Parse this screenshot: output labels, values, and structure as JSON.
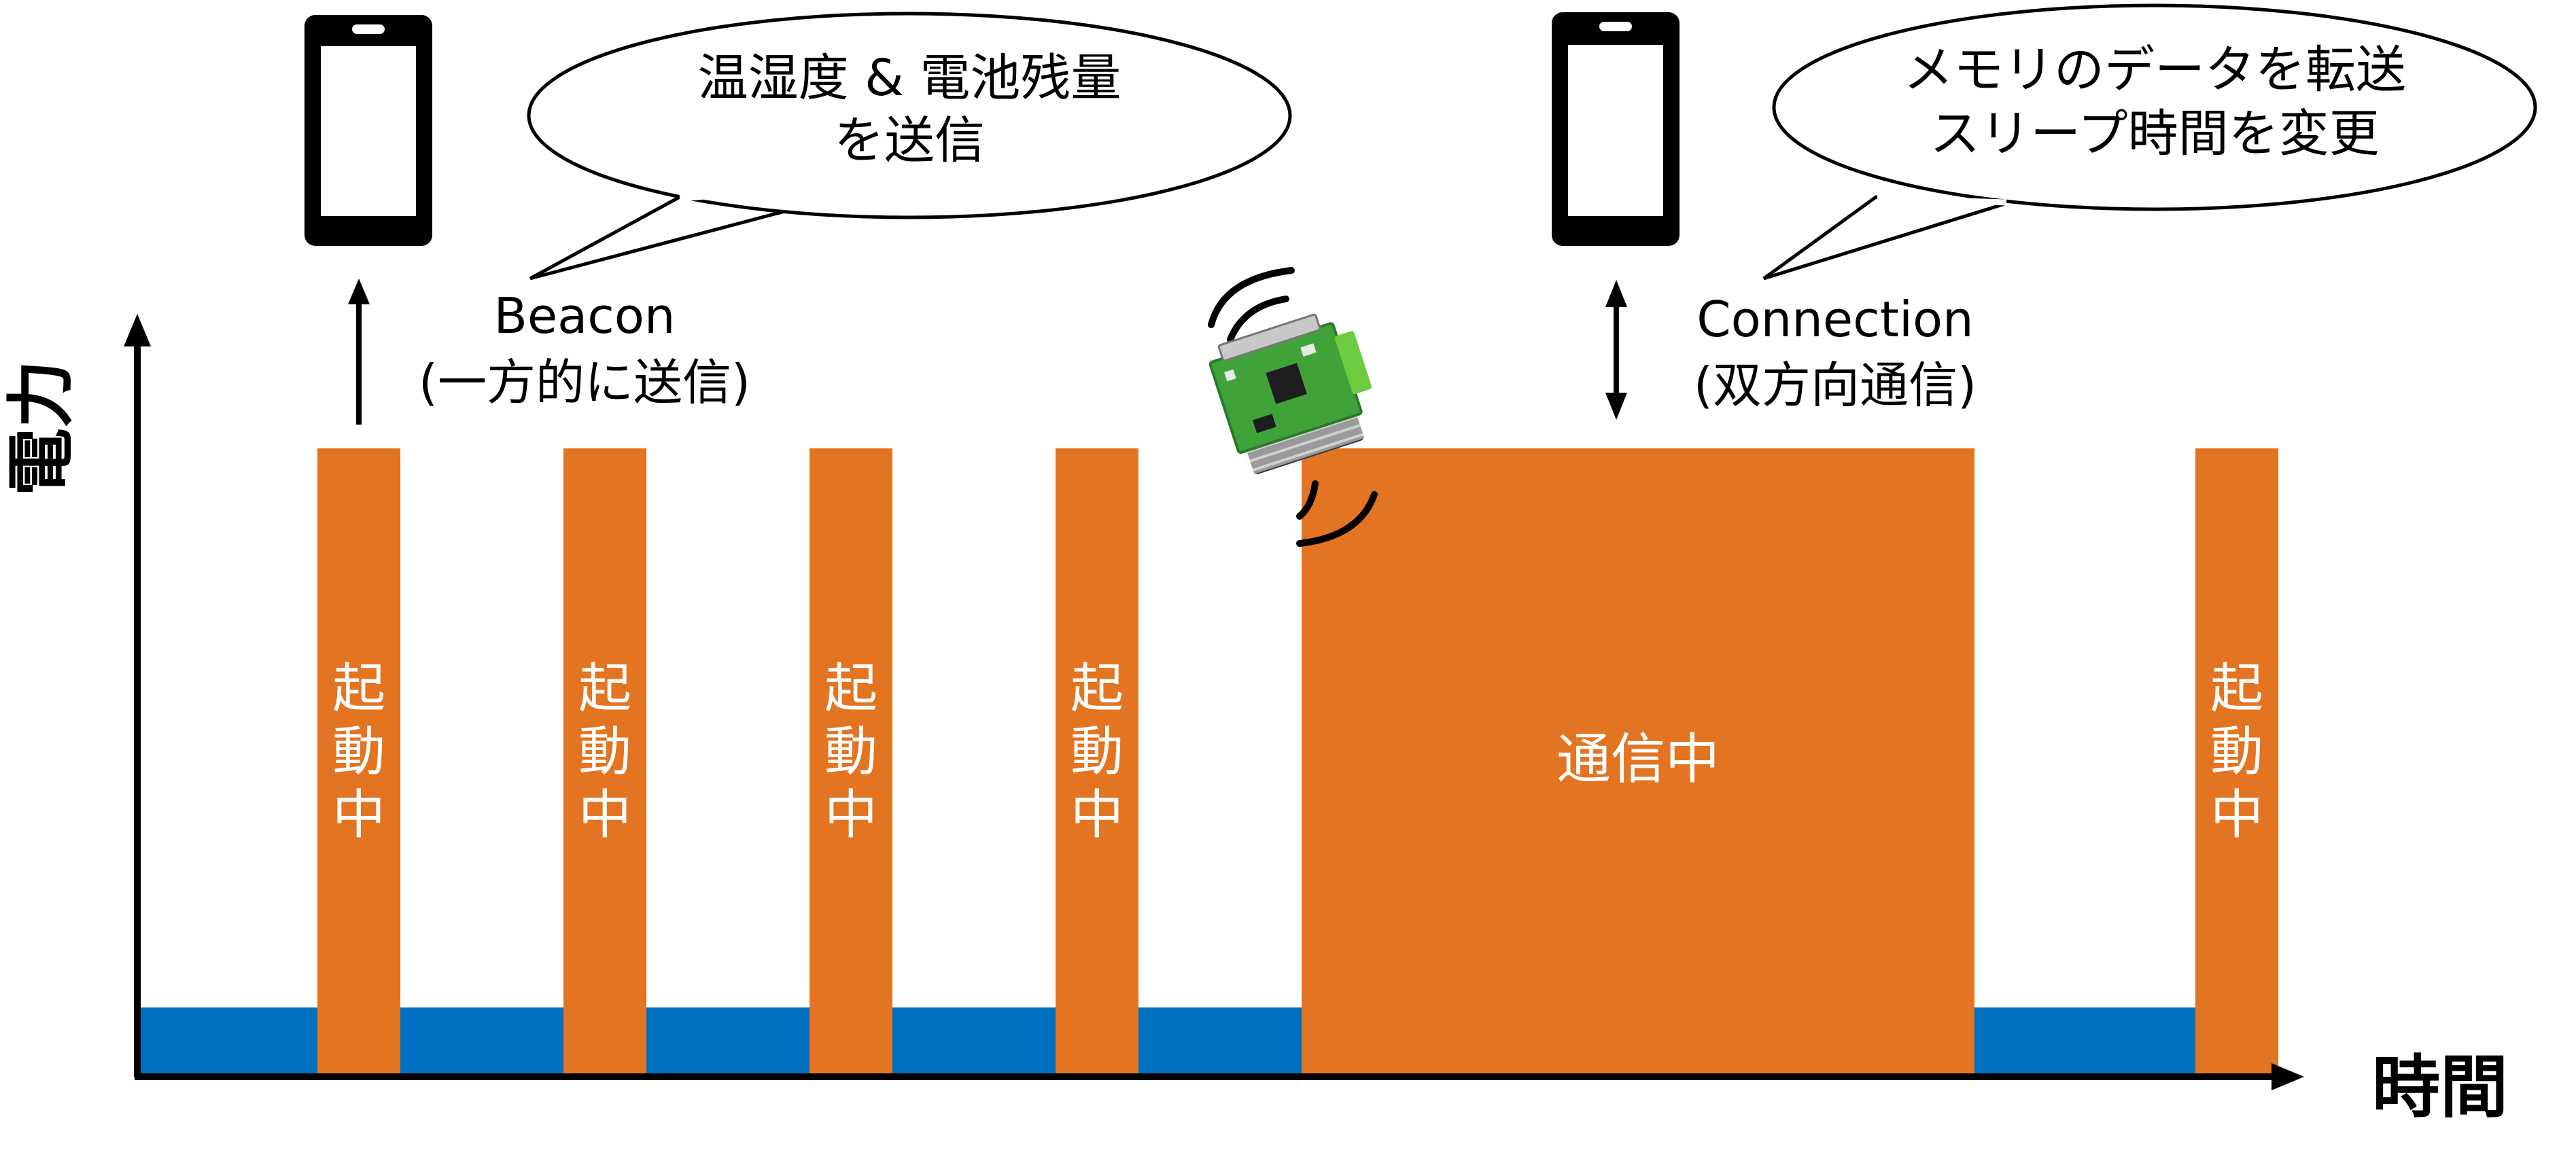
{
  "axes": {
    "y_label": "電力",
    "x_label": "時間"
  },
  "phases": [
    {
      "kind": "sleep"
    },
    {
      "kind": "active",
      "label": [
        "起",
        "動",
        "中"
      ]
    },
    {
      "kind": "sleep"
    },
    {
      "kind": "active",
      "label": [
        "起",
        "動",
        "中"
      ]
    },
    {
      "kind": "sleep"
    },
    {
      "kind": "active",
      "label": [
        "起",
        "動",
        "中"
      ]
    },
    {
      "kind": "sleep"
    },
    {
      "kind": "active",
      "label": [
        "起",
        "動",
        "中"
      ]
    },
    {
      "kind": "sleep"
    },
    {
      "kind": "communication",
      "label": "通信中"
    },
    {
      "kind": "sleep"
    },
    {
      "kind": "active",
      "label": [
        "起",
        "動",
        "中"
      ]
    }
  ],
  "beacon": {
    "title": "Beacon",
    "subtitle": "(一方的に送信)",
    "bubble_line1": "温湿度 & 電池残量",
    "bubble_line2": "を送信"
  },
  "connection": {
    "title": "Connection",
    "subtitle": "(双方向通信)",
    "bubble_line1": "メモリのデータを転送",
    "bubble_line2": "スリープ時間を変更"
  },
  "colors": {
    "active": "#E37421",
    "sleep": "#0070C0",
    "axis": "#000000",
    "pcb": "#3FA33A",
    "connector": "#6CCB3F"
  },
  "icons": [
    "smartphone-icon",
    "sensor-device-icon",
    "radio-wave-icon"
  ]
}
